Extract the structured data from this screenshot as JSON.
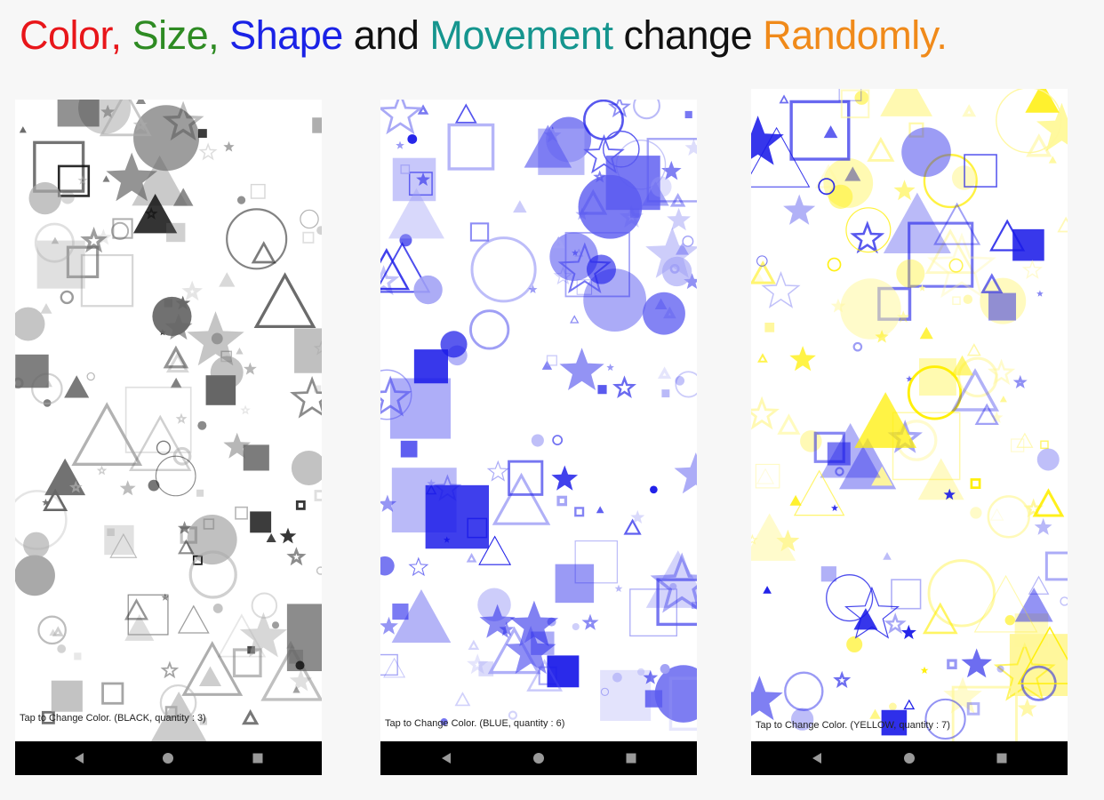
{
  "headline": {
    "words": [
      {
        "text": "Color,",
        "color": "#e8161a"
      },
      {
        "text": "Size,",
        "color": "#2e8b23"
      },
      {
        "text": "Shape",
        "color": "#1a22e6"
      },
      {
        "text": "and",
        "color": "#111111"
      },
      {
        "text": "Movement",
        "color": "#15958e"
      },
      {
        "text": "change",
        "color": "#111111"
      },
      {
        "text": "Randomly.",
        "color": "#f08a1a"
      }
    ]
  },
  "screens": [
    {
      "status": "Tap to Change Color.  (BLACK, quantity : 3)",
      "color": "#111111",
      "shade2": "#666666",
      "shade3": "#aaaaaa"
    },
    {
      "status": "Tap to Change Color.  (BLUE, quantity : 6)",
      "color": "#1a1ae8",
      "shade2": "#5a5af0",
      "shade3": "#a0a0f5"
    },
    {
      "status": "Tap to Change Color.  (YELLOW, quantity : 7)",
      "color": "#ffee00",
      "shade2": "#1a1ae8",
      "shade3": "#fff79a"
    }
  ],
  "nav": {
    "back_icon": "back-triangle-icon",
    "home_icon": "home-circle-icon",
    "recents_icon": "recents-square-icon"
  }
}
